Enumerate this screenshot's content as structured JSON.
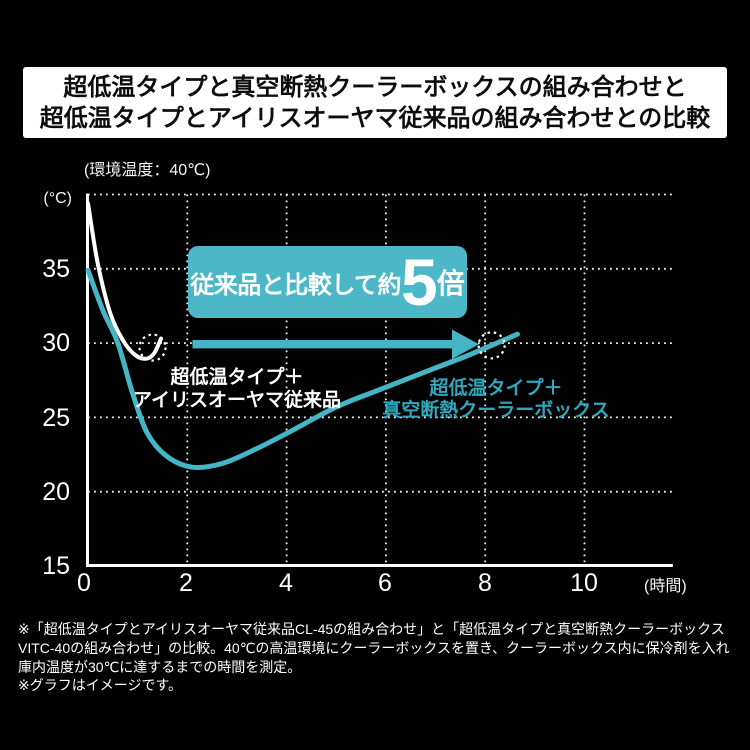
{
  "title": {
    "line1": "超低温タイプと真空断熱クーラーボックスの組み合わせと",
    "line2": "超低温タイプとアイリスオーヤマ従来品の組み合わせとの比較"
  },
  "colors": {
    "background": "#000000",
    "teal_banner": "#4cb7c7",
    "teal_curve": "#45b5c6",
    "teal_label_text": "#31a7bd",
    "white_curve": "#ffffff",
    "grid": "#ffffff",
    "title_text": "#0d0d0d"
  },
  "chart_data": {
    "type": "line",
    "ambient_note": "(環境温度：40℃)",
    "y_axis_unit": "(°C)",
    "x_axis_unit": "(時間)",
    "ylim": [
      15,
      40
    ],
    "xlim": [
      0,
      12
    ],
    "grid": "dotted",
    "y_ticks": [
      "35",
      "30",
      "25",
      "20",
      "15"
    ],
    "y_tick_values": [
      35,
      30,
      25,
      20,
      15
    ],
    "x_ticks": [
      "0",
      "2",
      "4",
      "6",
      "8",
      "10"
    ],
    "x_tick_values": [
      0,
      2,
      4,
      6,
      8,
      10
    ],
    "grid_y_values": [
      40,
      35,
      30,
      25,
      20
    ],
    "grid_x_values": [
      2,
      4,
      6,
      8,
      10
    ],
    "series": [
      {
        "name": "超低温タイプ＋アイリスオーヤマ従来品",
        "color": "#ffffff",
        "width": 4,
        "points": [
          [
            0,
            39.4
          ],
          [
            0.2,
            35.3
          ],
          [
            0.45,
            32.0
          ],
          [
            0.7,
            30.2
          ],
          [
            0.95,
            29.2
          ],
          [
            1.17,
            28.95
          ],
          [
            1.33,
            29.3
          ],
          [
            1.47,
            30.3
          ]
        ]
      },
      {
        "name": "超低温タイプ＋真空断熱クーラーボックス",
        "color": "#45b5c6",
        "width": 5,
        "points": [
          [
            0,
            34.9
          ],
          [
            0.3,
            32.2
          ],
          [
            0.6,
            30.0
          ],
          [
            0.9,
            26.6
          ],
          [
            1.2,
            23.9
          ],
          [
            1.6,
            22.35
          ],
          [
            2.1,
            21.65
          ],
          [
            2.7,
            21.9
          ],
          [
            3.4,
            22.9
          ],
          [
            4.1,
            24.1
          ],
          [
            5.0,
            25.7
          ],
          [
            5.9,
            26.9
          ],
          [
            6.9,
            28.2
          ],
          [
            7.6,
            29.1
          ],
          [
            8.13,
            29.85
          ],
          [
            8.65,
            30.6
          ]
        ]
      }
    ],
    "annotations": {
      "banner": {
        "prefix": "従来品と比較して約",
        "big": "5",
        "suffix": "倍"
      },
      "label_conventional": {
        "line1": "超低温タイプ＋",
        "line2": "アイリスオーヤマ従来品"
      },
      "label_vacuum": {
        "line1": "超低温タイプ＋",
        "line2": "真空断熱クーラーボックス"
      },
      "markers_30c": [
        {
          "t": 1.3,
          "T": 29.7
        },
        {
          "t": 8.13,
          "T": 29.85
        }
      ]
    }
  },
  "footnote": {
    "note1": "※「超低温タイプとアイリスオーヤマ従来品CL-45の組み合わせ」と「超低温タイプと真空断熱クーラーボックスVITC-40の組み合わせ」の比較。40℃の高温環境にクーラーボックスを置き、クーラーボックス内に保冷剤を入れ庫内温度が30℃に達するまでの時間を測定。",
    "note2": "※グラフはイメージです。"
  }
}
